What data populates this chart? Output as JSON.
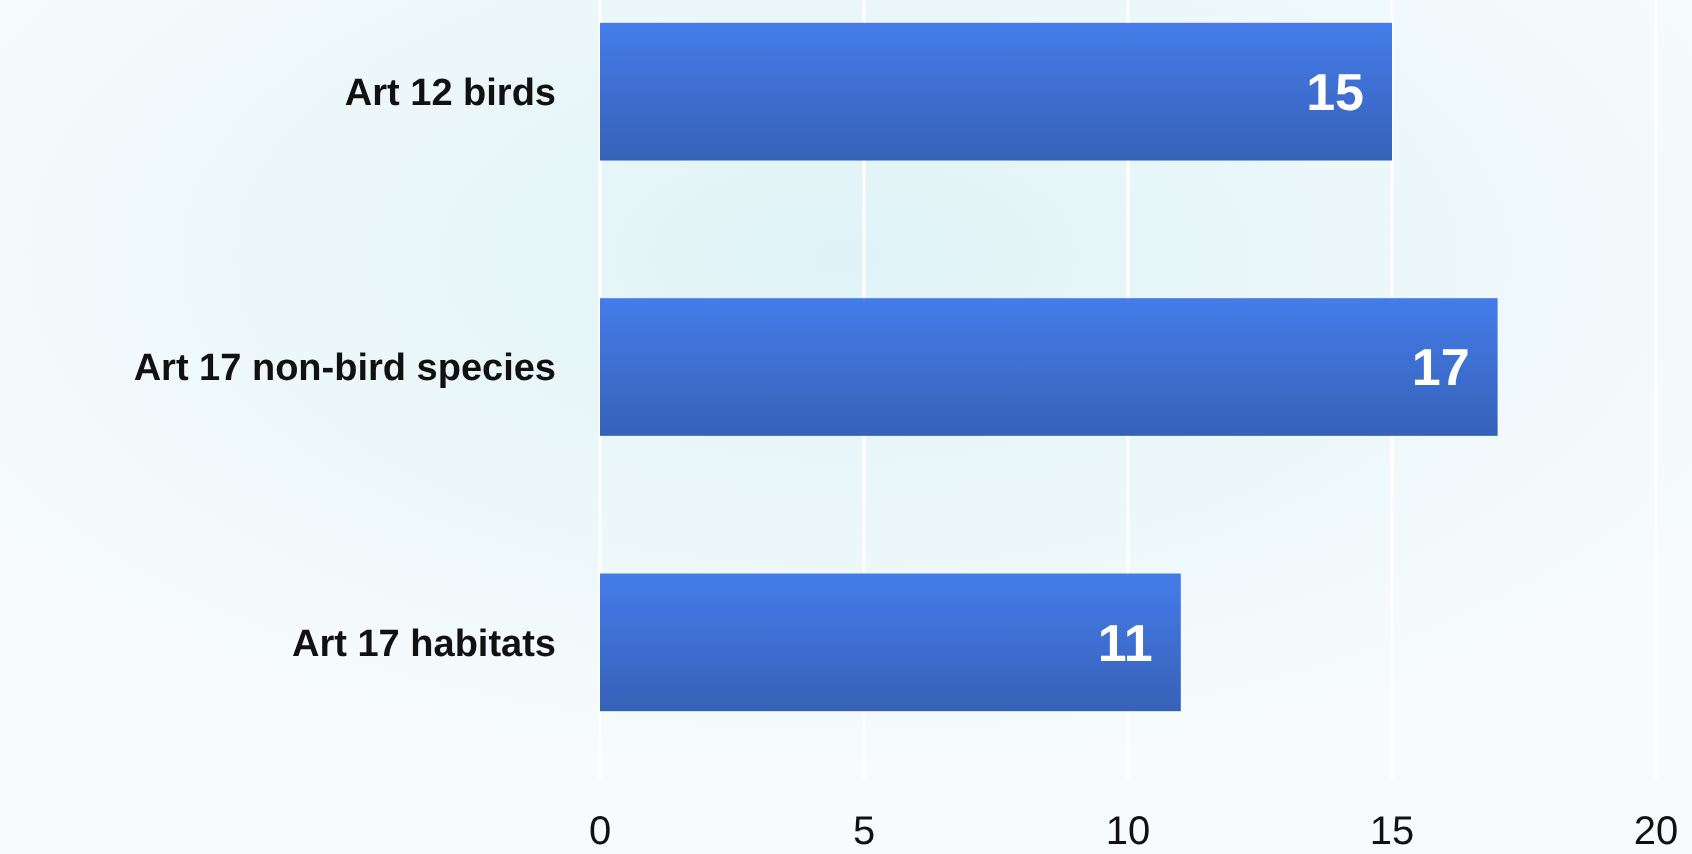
{
  "chart_data": {
    "type": "bar",
    "orientation": "horizontal",
    "categories": [
      "Art 12 birds",
      "Art 17 non-bird species",
      "Art 17 habitats"
    ],
    "values": [
      15,
      17,
      11
    ],
    "color": "#3a68c4",
    "xlim": [
      0,
      20
    ],
    "xticks": [
      0,
      5,
      10,
      15,
      20
    ],
    "grid": "x",
    "data_labels": true
  }
}
